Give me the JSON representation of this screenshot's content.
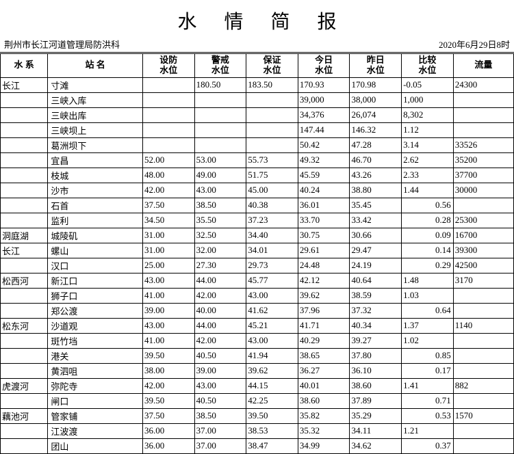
{
  "title": "水情简报",
  "org": "荆州市长江河道管理局防洪科",
  "date": "2020年6月29日8时",
  "headers": {
    "system": "水 系",
    "station": "站 名",
    "defense": "设防\n水位",
    "warning": "警戒\n水位",
    "guarantee": "保证\n水位",
    "today": "今日\n水位",
    "yesterday": "昨日\n水位",
    "diff": "比较\n水位",
    "flow": "流量"
  },
  "rows": [
    {
      "system": "长江",
      "station": "寸滩",
      "defense": "",
      "warning": "180.50",
      "guarantee": "183.50",
      "today": "170.93",
      "yesterday": "170.98",
      "diff": "-0.05",
      "flow": "24300"
    },
    {
      "system": "",
      "station": "三峡入库",
      "defense": "",
      "warning": "",
      "guarantee": "",
      "today": "39,000",
      "yesterday": "38,000",
      "diff": "1,000",
      "flow": ""
    },
    {
      "system": "",
      "station": "三峡出库",
      "defense": "",
      "warning": "",
      "guarantee": "",
      "today": "34,376",
      "yesterday": "26,074",
      "diff": "8,302",
      "flow": ""
    },
    {
      "system": "",
      "station": "三峡坝上",
      "defense": "",
      "warning": "",
      "guarantee": "",
      "today": "147.44",
      "yesterday": "146.32",
      "diff": "1.12",
      "flow": ""
    },
    {
      "system": "",
      "station": "葛洲坝下",
      "defense": "",
      "warning": "",
      "guarantee": "",
      "today": "50.42",
      "yesterday": "47.28",
      "diff": "3.14",
      "flow": "33526"
    },
    {
      "system": "",
      "station": "宜昌",
      "defense": "52.00",
      "warning": "53.00",
      "guarantee": "55.73",
      "today": "49.32",
      "yesterday": "46.70",
      "diff": "2.62",
      "flow": "35200"
    },
    {
      "system": "",
      "station": "枝城",
      "defense": "48.00",
      "warning": "49.00",
      "guarantee": "51.75",
      "today": "45.59",
      "yesterday": "43.26",
      "diff": "2.33",
      "flow": "37700"
    },
    {
      "system": "",
      "station": "沙市",
      "defense": "42.00",
      "warning": "43.00",
      "guarantee": "45.00",
      "today": "40.24",
      "yesterday": "38.80",
      "diff": "1.44",
      "flow": "30000"
    },
    {
      "system": "",
      "station": "石首",
      "defense": "37.50",
      "warning": "38.50",
      "guarantee": "40.38",
      "today": "36.01",
      "yesterday": "35.45",
      "diff": "   0.56",
      "flow": ""
    },
    {
      "system": "",
      "station": "监利",
      "defense": "34.50",
      "warning": "35.50",
      "guarantee": "37.23",
      "today": "33.70",
      "yesterday": "33.42",
      "diff": "   0.28",
      "flow": "25300"
    },
    {
      "system": "洞庭湖",
      "station": "城陵矶",
      "defense": "31.00",
      "warning": "32.50",
      "guarantee": "34.40",
      "today": "30.75",
      "yesterday": "30.66",
      "diff": "   0.09",
      "flow": "16700"
    },
    {
      "system": "长江",
      "station": "螺山",
      "defense": "31.00",
      "warning": "32.00",
      "guarantee": "34.01",
      "today": "29.61",
      "yesterday": "29.47",
      "diff": "   0.14",
      "flow": "39300"
    },
    {
      "system": "",
      "station": "汉口",
      "defense": "25.00",
      "warning": "27.30",
      "guarantee": "29.73",
      "today": "24.48",
      "yesterday": "24.19",
      "diff": "   0.29",
      "flow": "42500"
    },
    {
      "system": "松西河",
      "station": "新江口",
      "defense": "43.00",
      "warning": "44.00",
      "guarantee": "45.77",
      "today": "42.12",
      "yesterday": "40.64",
      "diff": "1.48",
      "flow": "3170"
    },
    {
      "system": "",
      "station": "狮子口",
      "defense": "41.00",
      "warning": "42.00",
      "guarantee": "43.00",
      "today": "39.62",
      "yesterday": "38.59",
      "diff": "1.03",
      "flow": ""
    },
    {
      "system": "",
      "station": "郑公渡",
      "defense": "39.00",
      "warning": "40.00",
      "guarantee": "41.62",
      "today": "37.96",
      "yesterday": "37.32",
      "diff": "   0.64",
      "flow": ""
    },
    {
      "system": "松东河",
      "station": "沙道观",
      "defense": "43.00",
      "warning": "44.00",
      "guarantee": "45.21",
      "today": "41.71",
      "yesterday": "40.34",
      "diff": "1.37",
      "flow": "1140"
    },
    {
      "system": "",
      "station": "斑竹垱",
      "defense": "41.00",
      "warning": "42.00",
      "guarantee": "43.00",
      "today": "40.29",
      "yesterday": "39.27",
      "diff": "1.02",
      "flow": ""
    },
    {
      "system": "",
      "station": "港关",
      "defense": "39.50",
      "warning": "40.50",
      "guarantee": "41.94",
      "today": "38.65",
      "yesterday": "37.80",
      "diff": "   0.85",
      "flow": ""
    },
    {
      "system": "",
      "station": "黄泗咀",
      "defense": "38.00",
      "warning": "39.00",
      "guarantee": "39.62",
      "today": "36.27",
      "yesterday": "36.10",
      "diff": "   0.17",
      "flow": ""
    },
    {
      "system": "虎渡河",
      "station": "弥陀寺",
      "defense": "42.00",
      "warning": "43.00",
      "guarantee": "44.15",
      "today": "40.01",
      "yesterday": "38.60",
      "diff": "1.41",
      "flow": "882"
    },
    {
      "system": "",
      "station": "闸口",
      "defense": "39.50",
      "warning": "40.50",
      "guarantee": "42.25",
      "today": "38.60",
      "yesterday": "37.89",
      "diff": "   0.71",
      "flow": ""
    },
    {
      "system": "藕池河",
      "station": "管家铺",
      "defense": "37.50",
      "warning": "38.50",
      "guarantee": "39.50",
      "today": "35.82",
      "yesterday": "35.29",
      "diff": "   0.53",
      "flow": "1570"
    },
    {
      "system": "",
      "station": "江波渡",
      "defense": "36.00",
      "warning": "37.00",
      "guarantee": "38.53",
      "today": "35.32",
      "yesterday": "34.11",
      "diff": "1.21",
      "flow": ""
    },
    {
      "system": "",
      "station": "团山",
      "defense": "36.00",
      "warning": "37.00",
      "guarantee": "38.47",
      "today": "34.99",
      "yesterday": "34.62",
      "diff": "   0.37",
      "flow": ""
    }
  ]
}
